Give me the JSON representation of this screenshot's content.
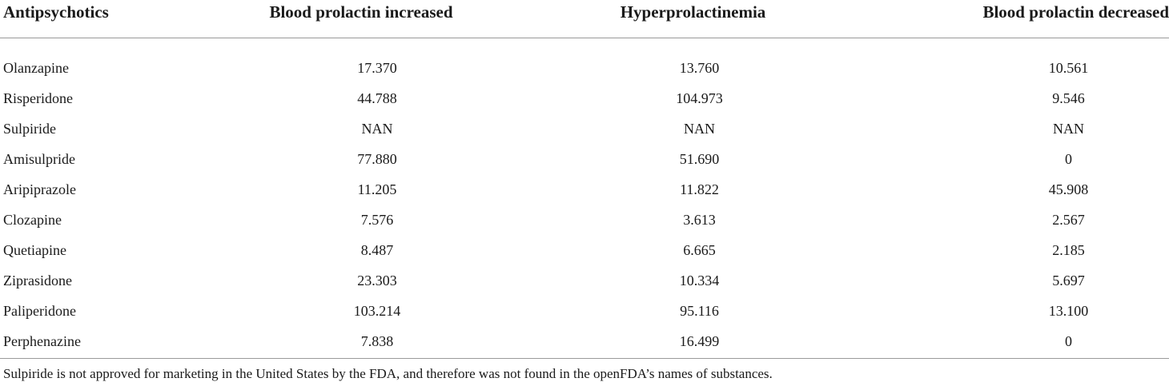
{
  "table": {
    "headers": [
      "Antipsychotics",
      "Blood prolactin increased",
      "Hyperprolactinemia",
      "Blood prolactin decreased"
    ],
    "rows": [
      [
        "Olanzapine",
        "17.370",
        "13.760",
        "10.561"
      ],
      [
        "Risperidone",
        "44.788",
        "104.973",
        "9.546"
      ],
      [
        "Sulpiride",
        "NAN",
        "NAN",
        "NAN"
      ],
      [
        "Amisulpride",
        "77.880",
        "51.690",
        "0"
      ],
      [
        "Aripiprazole",
        "11.205",
        "11.822",
        "45.908"
      ],
      [
        "Clozapine",
        "7.576",
        "3.613",
        "2.567"
      ],
      [
        "Quetiapine",
        "8.487",
        "6.665",
        "2.185"
      ],
      [
        "Ziprasidone",
        "23.303",
        "10.334",
        "5.697"
      ],
      [
        "Paliperidone",
        "103.214",
        "95.116",
        "13.100"
      ],
      [
        "Perphenazine",
        "7.838",
        "16.499",
        "0"
      ]
    ]
  },
  "footnote": "Sulpiride is not approved for marketing in the United States by the FDA, and therefore was not found in the openFDA’s names of substances."
}
